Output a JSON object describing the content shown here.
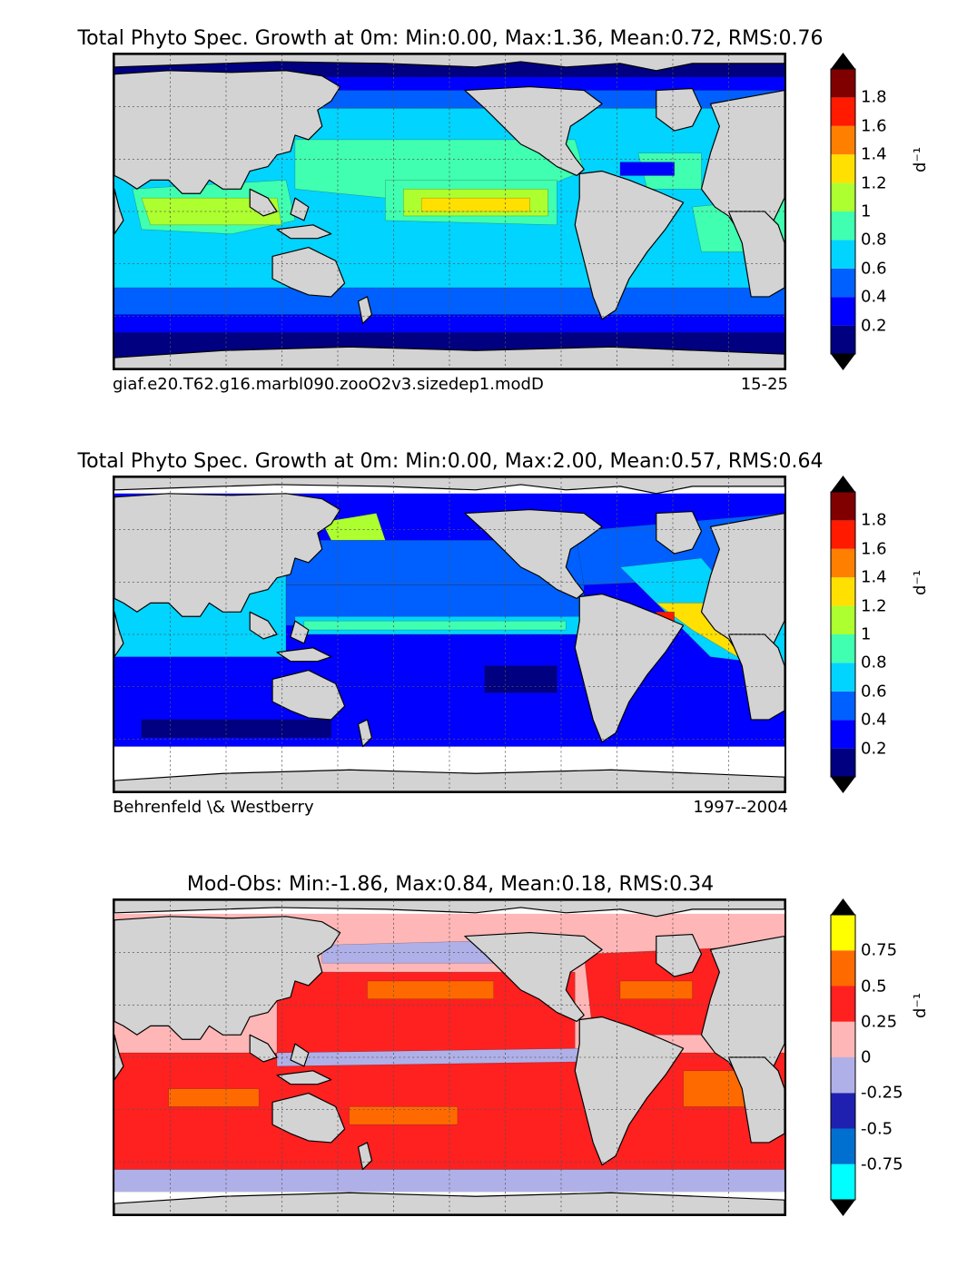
{
  "chart_data": [
    {
      "type": "heatmap",
      "title": "Total Phyto Spec. Growth at 0m: Min:0.00, Max:1.36, Mean:0.72, RMS:0.76",
      "footer_left": "giaf.e20.T62.g16.marbl090.zooO2v3.sizedep1.modD",
      "footer_right": "15-25",
      "stats": {
        "min": 0.0,
        "max": 1.36,
        "mean": 0.72,
        "rms": 0.76
      },
      "colorbar": {
        "unit": "d⁻¹",
        "ticks": [
          "0.2",
          "0.4",
          "0.6",
          "0.8",
          "1",
          "1.2",
          "1.4",
          "1.6",
          "1.8"
        ],
        "bounds": [
          0,
          0.2,
          0.4,
          0.6,
          0.8,
          1.0,
          1.2,
          1.4,
          1.6,
          1.8,
          2.0
        ],
        "colors": [
          "#000080",
          "#0000ff",
          "#0060ff",
          "#00d4ff",
          "#40ffb0",
          "#adff2f",
          "#ffe000",
          "#ff8000",
          "#ff1a00",
          "#800000"
        ],
        "extend_colors": [
          "#000000",
          "#000000"
        ]
      }
    },
    {
      "type": "heatmap",
      "title": "Total Phyto Spec. Growth at 0m: Min:0.00, Max:2.00, Mean:0.57, RMS:0.64",
      "footer_left": "Behrenfeld \\& Westberry",
      "footer_right": "1997--2004",
      "stats": {
        "min": 0.0,
        "max": 2.0,
        "mean": 0.57,
        "rms": 0.64
      },
      "colorbar": {
        "unit": "d⁻¹",
        "ticks": [
          "0.2",
          "0.4",
          "0.6",
          "0.8",
          "1",
          "1.2",
          "1.4",
          "1.6",
          "1.8"
        ],
        "bounds": [
          0,
          0.2,
          0.4,
          0.6,
          0.8,
          1.0,
          1.2,
          1.4,
          1.6,
          1.8,
          2.0
        ],
        "colors": [
          "#000080",
          "#0000ff",
          "#0060ff",
          "#00d4ff",
          "#40ffb0",
          "#adff2f",
          "#ffe000",
          "#ff8000",
          "#ff1a00",
          "#800000"
        ],
        "extend_colors": [
          "#000000",
          "#000000"
        ]
      }
    },
    {
      "type": "heatmap",
      "title": "Mod-Obs: Min:-1.86, Max:0.84, Mean:0.18, RMS:0.34",
      "footer_left": "",
      "footer_right": "",
      "stats": {
        "min": -1.86,
        "max": 0.84,
        "mean": 0.18,
        "rms": 0.34
      },
      "colorbar": {
        "unit": "d⁻¹",
        "ticks": [
          "-0.75",
          "-0.5",
          "-0.25",
          "0",
          "0.25",
          "0.5",
          "0.75"
        ],
        "bounds": [
          -1.0,
          -0.75,
          -0.5,
          -0.25,
          0,
          0.25,
          0.5,
          0.75,
          1.0
        ],
        "colors": [
          "#00ffff",
          "#0070d0",
          "#2020b0",
          "#b0b0e8",
          "#ffb6b6",
          "#ff2020",
          "#ff6a00",
          "#ffff00"
        ],
        "extend_colors": [
          "#000000",
          "#000000"
        ]
      }
    }
  ],
  "map_colors": {
    "land": "#d3d3d3",
    "missing": "#ffffff",
    "grid": "#555555",
    "coast": "#000000"
  }
}
